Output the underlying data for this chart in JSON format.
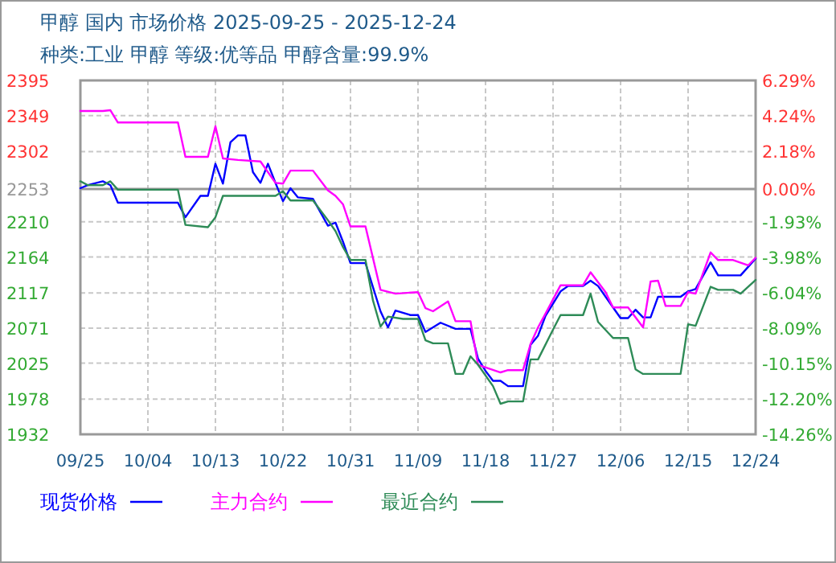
{
  "chart_data": {
    "type": "line",
    "title": "甲醇  国内  市场价格  2025-09-25 - 2025-12-24",
    "subtitle": "种类:工业 甲醇  等级:优等品  甲醇含量:99.9%",
    "xlim": [
      "2025-09-25",
      "2025-12-24"
    ],
    "xticks": [
      {
        "value": "2025-09-25",
        "label": "09/25"
      },
      {
        "value": "2025-10-04",
        "label": "10/04"
      },
      {
        "value": "2025-10-13",
        "label": "10/13"
      },
      {
        "value": "2025-10-22",
        "label": "10/22"
      },
      {
        "value": "2025-10-31",
        "label": "10/31"
      },
      {
        "value": "2025-11-09",
        "label": "11/09"
      },
      {
        "value": "2025-11-18",
        "label": "11/18"
      },
      {
        "value": "2025-11-27",
        "label": "11/27"
      },
      {
        "value": "2025-12-06",
        "label": "12/06"
      },
      {
        "value": "2025-12-15",
        "label": "12/15"
      },
      {
        "value": "2025-12-24",
        "label": "12/24"
      }
    ],
    "ylim": [
      1932,
      2395
    ],
    "yticks": [
      1932,
      1978,
      2025,
      2071,
      2117,
      2164,
      2210,
      2253,
      2302,
      2349,
      2395
    ],
    "y2lim": [
      -14.26,
      6.29
    ],
    "y2ticks": [
      {
        "value": -14.26,
        "label": "-14.26%"
      },
      {
        "value": -12.2,
        "label": "-12.20%"
      },
      {
        "value": -10.15,
        "label": "-10.15%"
      },
      {
        "value": -8.09,
        "label": "-8.09%"
      },
      {
        "value": -6.04,
        "label": "-6.04%"
      },
      {
        "value": -3.98,
        "label": "-3.98%"
      },
      {
        "value": -1.93,
        "label": "-1.93%"
      },
      {
        "value": 0,
        "label": "0.00%"
      },
      {
        "value": 2.18,
        "label": "2.18%"
      },
      {
        "value": 4.24,
        "label": "4.24%"
      },
      {
        "value": 6.29,
        "label": "6.29%"
      }
    ],
    "grid": true,
    "legend": "bottom",
    "line_style": "solid",
    "ref_lines": [
      {
        "axis": "y",
        "value": 2253,
        "color": "#999999"
      }
    ],
    "series": [
      {
        "name": "现货价格",
        "color": "#0000ff",
        "x": [
          "2025-09-25",
          "2025-09-26",
          "2025-09-28",
          "2025-09-29",
          "2025-09-30",
          "2025-10-08",
          "2025-10-09",
          "2025-10-11",
          "2025-10-12",
          "2025-10-13",
          "2025-10-14",
          "2025-10-15",
          "2025-10-16",
          "2025-10-17",
          "2025-10-18",
          "2025-10-19",
          "2025-10-20",
          "2025-10-21",
          "2025-10-22",
          "2025-10-23",
          "2025-10-24",
          "2025-10-26",
          "2025-10-28",
          "2025-10-29",
          "2025-10-30",
          "2025-10-31",
          "2025-11-02",
          "2025-11-04",
          "2025-11-05",
          "2025-11-06",
          "2025-11-08",
          "2025-11-09",
          "2025-11-10",
          "2025-11-12",
          "2025-11-14",
          "2025-11-16",
          "2025-11-17",
          "2025-11-18",
          "2025-11-19",
          "2025-11-20",
          "2025-11-21",
          "2025-11-23",
          "2025-11-24",
          "2025-11-25",
          "2025-11-26",
          "2025-11-28",
          "2025-11-29",
          "2025-12-01",
          "2025-12-02",
          "2025-12-03",
          "2025-12-05",
          "2025-12-06",
          "2025-12-07",
          "2025-12-08",
          "2025-12-09",
          "2025-12-10",
          "2025-12-11",
          "2025-12-14",
          "2025-12-15",
          "2025-12-16",
          "2025-12-18",
          "2025-12-19",
          "2025-12-22",
          "2025-12-24"
        ],
        "values": [
          2254,
          2258,
          2263,
          2258,
          2235,
          2235,
          2216,
          2244,
          2244,
          2286,
          2260,
          2314,
          2323,
          2323,
          2275,
          2261,
          2286,
          2261,
          2237,
          2254,
          2242,
          2240,
          2205,
          2209,
          2184,
          2156,
          2156,
          2093,
          2072,
          2094,
          2088,
          2088,
          2066,
          2078,
          2070,
          2070,
          2031,
          2015,
          2002,
          2002,
          1995,
          1995,
          2049,
          2061,
          2087,
          2119,
          2126,
          2126,
          2133,
          2126,
          2098,
          2084,
          2084,
          2095,
          2085,
          2085,
          2112,
          2112,
          2119,
          2122,
          2157,
          2140,
          2140,
          2162
        ]
      },
      {
        "name": "主力合约",
        "color": "#ff00ff",
        "x": [
          "2025-09-25",
          "2025-09-28",
          "2025-09-29",
          "2025-09-30",
          "2025-10-08",
          "2025-10-09",
          "2025-10-12",
          "2025-10-13",
          "2025-10-14",
          "2025-10-16",
          "2025-10-19",
          "2025-10-21",
          "2025-10-22",
          "2025-10-23",
          "2025-10-26",
          "2025-10-28",
          "2025-10-29",
          "2025-10-30",
          "2025-10-31",
          "2025-11-02",
          "2025-11-04",
          "2025-11-06",
          "2025-11-09",
          "2025-11-10",
          "2025-11-11",
          "2025-11-13",
          "2025-11-14",
          "2025-11-16",
          "2025-11-17",
          "2025-11-20",
          "2025-11-21",
          "2025-11-23",
          "2025-11-24",
          "2025-11-25",
          "2025-11-26",
          "2025-11-28",
          "2025-12-01",
          "2025-12-02",
          "2025-12-04",
          "2025-12-05",
          "2025-12-07",
          "2025-12-09",
          "2025-12-10",
          "2025-12-11",
          "2025-12-12",
          "2025-12-14",
          "2025-12-15",
          "2025-12-16",
          "2025-12-18",
          "2025-12-19",
          "2025-12-21",
          "2025-12-23",
          "2025-12-24"
        ],
        "values": [
          2355,
          2355,
          2356,
          2340,
          2340,
          2295,
          2295,
          2335,
          2293,
          2291,
          2289,
          2261,
          2260,
          2277,
          2277,
          2251,
          2244,
          2233,
          2204,
          2204,
          2121,
          2116,
          2118,
          2097,
          2093,
          2106,
          2080,
          2080,
          2023,
          2013,
          2016,
          2016,
          2050,
          2072,
          2090,
          2127,
          2127,
          2144,
          2118,
          2098,
          2098,
          2072,
          2132,
          2133,
          2100,
          2100,
          2118,
          2116,
          2170,
          2160,
          2160,
          2153,
          2163
        ]
      },
      {
        "name": "最近合约",
        "color": "#2e8b57",
        "x": [
          "2025-09-25",
          "2025-09-26",
          "2025-09-28",
          "2025-09-29",
          "2025-09-30",
          "2025-10-08",
          "2025-10-09",
          "2025-10-12",
          "2025-10-13",
          "2025-10-14",
          "2025-10-21",
          "2025-10-22",
          "2025-10-23",
          "2025-10-26",
          "2025-10-28",
          "2025-10-29",
          "2025-10-30",
          "2025-10-31",
          "2025-11-02",
          "2025-11-03",
          "2025-11-04",
          "2025-11-05",
          "2025-11-07",
          "2025-11-09",
          "2025-11-10",
          "2025-11-11",
          "2025-11-13",
          "2025-11-14",
          "2025-11-15",
          "2025-11-16",
          "2025-11-17",
          "2025-11-19",
          "2025-11-20",
          "2025-11-21",
          "2025-11-23",
          "2025-11-24",
          "2025-11-25",
          "2025-11-27",
          "2025-11-28",
          "2025-12-01",
          "2025-12-02",
          "2025-12-03",
          "2025-12-05",
          "2025-12-07",
          "2025-12-08",
          "2025-12-09",
          "2025-12-14",
          "2025-12-15",
          "2025-12-16",
          "2025-12-18",
          "2025-12-19",
          "2025-12-21",
          "2025-12-22",
          "2025-12-24"
        ],
        "values": [
          2263,
          2258,
          2258,
          2263,
          2252,
          2252,
          2206,
          2203,
          2216,
          2244,
          2244,
          2250,
          2238,
          2238,
          2212,
          2198,
          2177,
          2160,
          2160,
          2107,
          2073,
          2086,
          2083,
          2083,
          2055,
          2051,
          2051,
          2011,
          2011,
          2034,
          2023,
          1995,
          1972,
          1975,
          1975,
          2030,
          2030,
          2069,
          2088,
          2088,
          2116,
          2079,
          2058,
          2058,
          2017,
          2011,
          2011,
          2076,
          2074,
          2125,
          2121,
          2121,
          2116,
          2134
        ]
      }
    ]
  }
}
